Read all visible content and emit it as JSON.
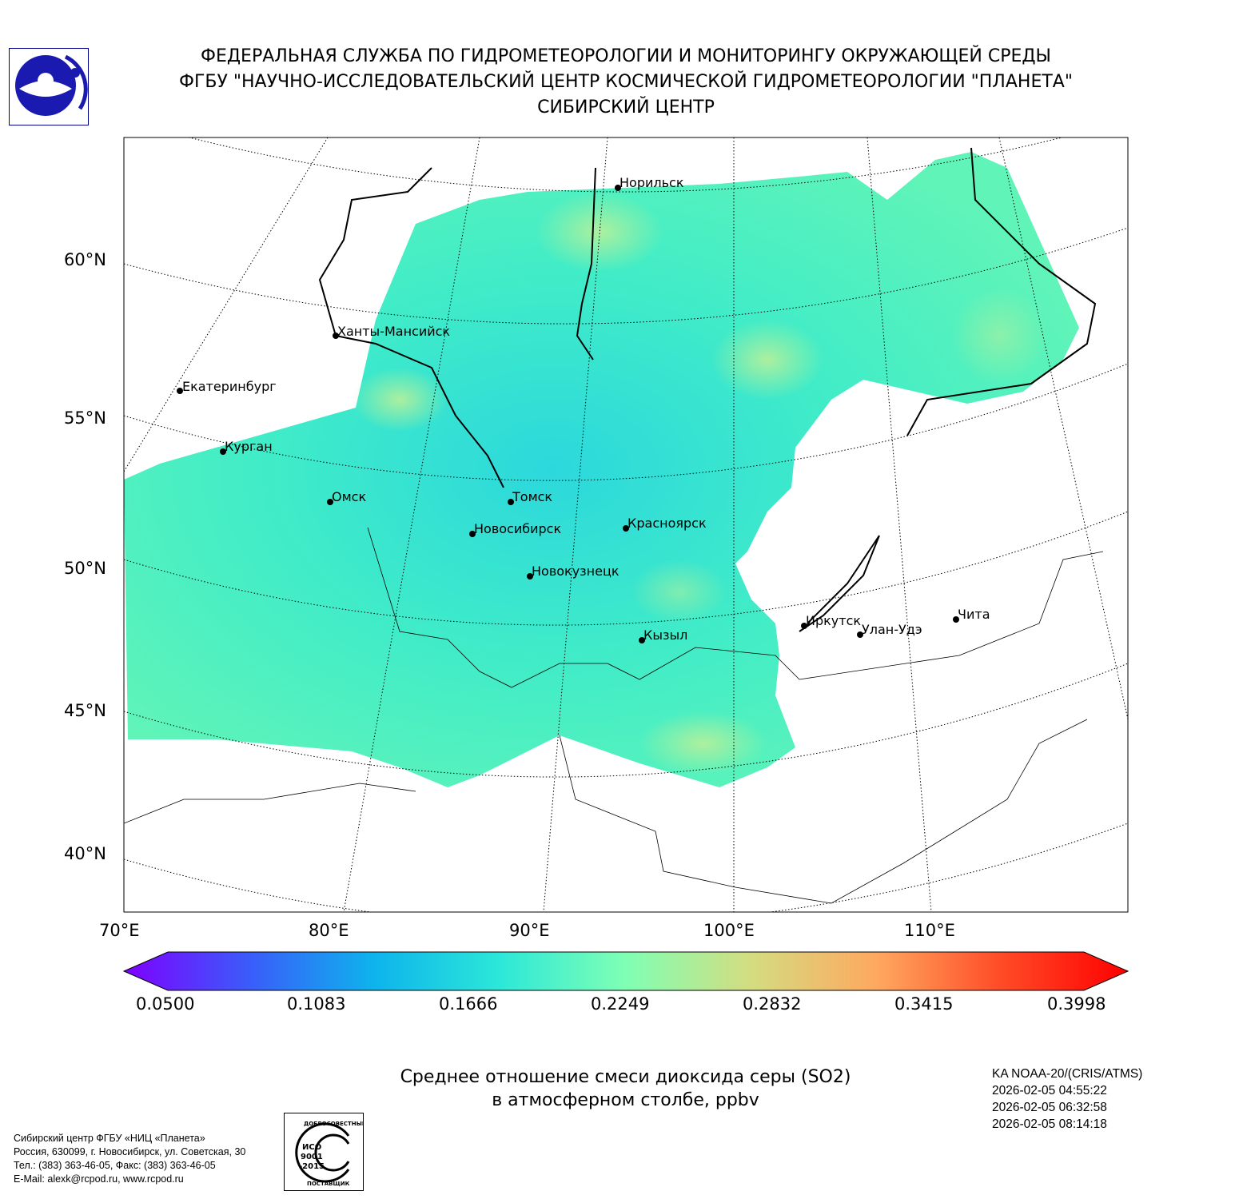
{
  "header": {
    "line1": "ФЕДЕРАЛЬНАЯ СЛУЖБА ПО ГИДРОМЕТЕОРОЛОГИИ И МОНИТОРИНГУ ОКРУЖАЮЩЕЙ СРЕДЫ",
    "line2": "ФГБУ \"НАУЧНО-ИССЛЕДОВАТЕЛЬСКИЙ ЦЕНТР КОСМИЧЕСКОЙ ГИДРОМЕТЕОРОЛОГИИ \"ПЛАНЕТА\"",
    "line3": "СИБИРСКИЙ ЦЕНТР"
  },
  "map": {
    "lat_labels": [
      "60°N",
      "55°N",
      "50°N",
      "45°N",
      "40°N"
    ],
    "lon_labels": [
      "70°E",
      "80°E",
      "90°E",
      "100°E",
      "110°E"
    ],
    "cities": [
      "Норильск",
      "Ханты-Мансийск",
      "Екатеринбург",
      "Курган",
      "Омск",
      "Томск",
      "Новосибирск",
      "Красноярск",
      "Новокузнецк",
      "Кызыл",
      "Иркутск",
      "Улан-Удэ",
      "Чита"
    ]
  },
  "colorbar": {
    "ticks": [
      "0.0500",
      "0.1083",
      "0.1666",
      "0.2249",
      "0.2832",
      "0.3415",
      "0.3998"
    ],
    "colors": [
      "#7f00ff",
      "#3a5cfa",
      "#0db4ec",
      "#2ce8d8",
      "#80ffb4",
      "#d4dc80",
      "#ffa860",
      "#ff4a26",
      "#ff0000"
    ]
  },
  "caption": {
    "line1": "Среднее отношение смеси диоксида серы (SO2)",
    "line2": "в атмосферном столбе, ppbv"
  },
  "satellite": {
    "name": "KA NOAA-20/(CRIS/ATMS)",
    "times": [
      "2026-02-05 04:55:22",
      "2026-02-05 06:32:58",
      "2026-02-05 08:14:18"
    ]
  },
  "footer": {
    "lines": [
      "Сибирский центр ФГБУ «НИЦ «Планета»",
      "Россия, 630099, г. Новосибирск, ул. Советская, 30",
      "Тел.: (383) 363-46-05, Факс: (383) 363-46-05",
      "E-Mail: alexk@rcpod.ru, www.rcpod.ru"
    ],
    "iso": {
      "top": "ДОБРОСОВЕСТНЫЙ",
      "mid": "ИСО 9001 -2015",
      "bottom": "ПОСТАВЩИК"
    }
  }
}
